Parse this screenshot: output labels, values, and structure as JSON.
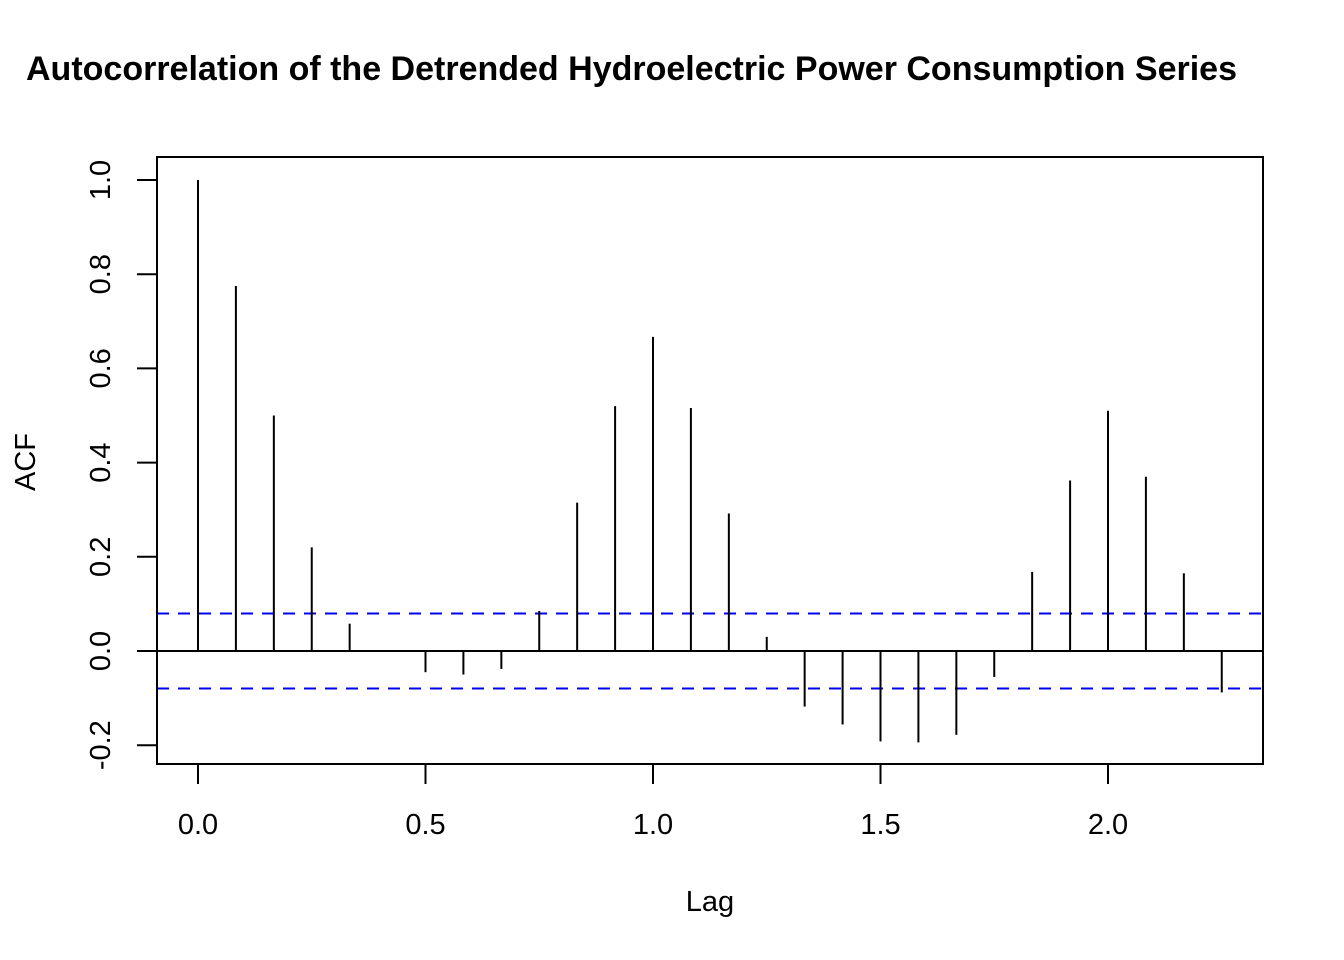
{
  "chart_data": {
    "type": "bar",
    "title": "Autocorrelation of the Detrended Hydroelectric Power Consumption Series",
    "xlabel": "Lag",
    "ylabel": "ACF",
    "xlim": [
      -0.09,
      2.34
    ],
    "ylim": [
      -0.24,
      1.05
    ],
    "xticks": [
      {
        "value": 0.0,
        "label": "0.0"
      },
      {
        "value": 0.5,
        "label": "0.5"
      },
      {
        "value": 1.0,
        "label": "1.0"
      },
      {
        "value": 1.5,
        "label": "1.5"
      },
      {
        "value": 2.0,
        "label": "2.0"
      }
    ],
    "yticks": [
      {
        "value": -0.2,
        "label": "-0.2"
      },
      {
        "value": 0.0,
        "label": "0.0"
      },
      {
        "value": 0.2,
        "label": "0.2"
      },
      {
        "value": 0.4,
        "label": "0.4"
      },
      {
        "value": 0.6,
        "label": "0.6"
      },
      {
        "value": 0.8,
        "label": "0.8"
      },
      {
        "value": 1.0,
        "label": "1.0"
      }
    ],
    "lags": [
      0.0,
      0.0833,
      0.1667,
      0.25,
      0.3333,
      0.4167,
      0.5,
      0.5833,
      0.6667,
      0.75,
      0.8333,
      0.9167,
      1.0,
      1.0833,
      1.1667,
      1.25,
      1.3333,
      1.4167,
      1.5,
      1.5833,
      1.6667,
      1.75,
      1.8333,
      1.9167,
      2.0,
      2.0833,
      2.1667,
      2.25
    ],
    "values": [
      1.0,
      0.775,
      0.5,
      0.22,
      0.058,
      0.0,
      -0.045,
      -0.05,
      -0.038,
      0.085,
      0.315,
      0.52,
      0.667,
      0.516,
      0.292,
      0.03,
      -0.118,
      -0.156,
      -0.192,
      -0.194,
      -0.178,
      -0.055,
      0.168,
      0.362,
      0.51,
      0.37,
      0.165,
      -0.088
    ],
    "confidence_bound": 0.0795,
    "colors": {
      "bars": "#000000",
      "confidence_lines": "#0000ee",
      "zero_line": "#000000",
      "frame": "#000000"
    },
    "grid": false
  }
}
